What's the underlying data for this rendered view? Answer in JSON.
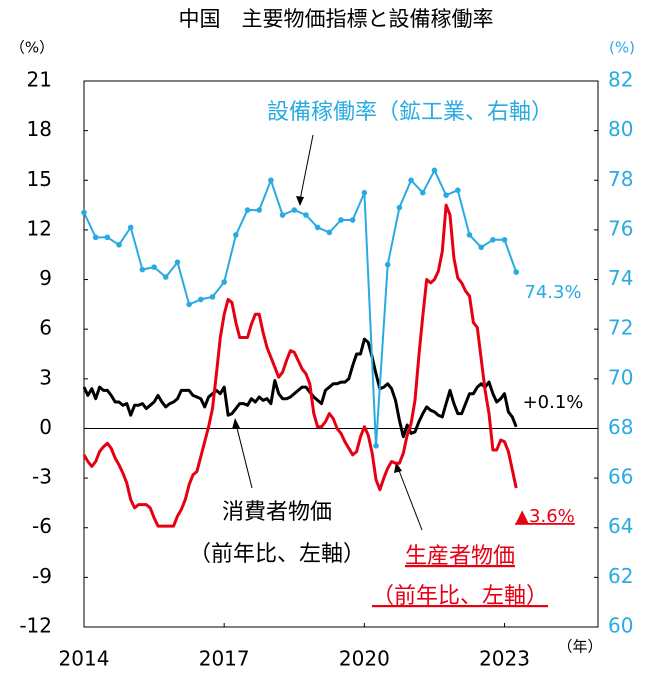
{
  "chart_data": {
    "type": "line",
    "title": "中国　主要物価指標と設備稼働率",
    "y_unit": "（%）",
    "y2_unit": "(%)",
    "x_unit": "（年）",
    "xlim": [
      2014,
      2025
    ],
    "xticks": [
      2014,
      2017,
      2020,
      2023
    ],
    "ylim": [
      -12,
      21
    ],
    "yticks": [
      -12,
      -9,
      -6,
      -3,
      0,
      3,
      6,
      9,
      12,
      15,
      18,
      21
    ],
    "y2lim": [
      60,
      82
    ],
    "y2ticks": [
      60,
      62,
      64,
      66,
      68,
      70,
      72,
      74,
      76,
      78,
      80,
      82
    ],
    "zero_line": true,
    "series": [
      {
        "name": "消費者物価",
        "color": "#000000",
        "axis": "y",
        "markers": false,
        "x": [
          2014,
          2014.083,
          2014.167,
          2014.25,
          2014.333,
          2014.417,
          2014.5,
          2014.583,
          2014.667,
          2014.75,
          2014.833,
          2014.917,
          2015,
          2015.083,
          2015.167,
          2015.25,
          2015.333,
          2015.417,
          2015.5,
          2015.583,
          2015.667,
          2015.75,
          2015.833,
          2015.917,
          2016,
          2016.083,
          2016.167,
          2016.25,
          2016.333,
          2016.417,
          2016.5,
          2016.583,
          2016.667,
          2016.75,
          2016.833,
          2016.917,
          2017,
          2017.083,
          2017.167,
          2017.25,
          2017.333,
          2017.417,
          2017.5,
          2017.583,
          2017.667,
          2017.75,
          2017.833,
          2017.917,
          2018,
          2018.083,
          2018.167,
          2018.25,
          2018.333,
          2018.417,
          2018.5,
          2018.583,
          2018.667,
          2018.75,
          2018.833,
          2018.917,
          2019,
          2019.083,
          2019.167,
          2019.25,
          2019.333,
          2019.417,
          2019.5,
          2019.583,
          2019.667,
          2019.75,
          2019.833,
          2019.917,
          2020,
          2020.083,
          2020.167,
          2020.25,
          2020.333,
          2020.417,
          2020.5,
          2020.583,
          2020.667,
          2020.75,
          2020.833,
          2020.917,
          2021,
          2021.083,
          2021.167,
          2021.25,
          2021.333,
          2021.417,
          2021.5,
          2021.583,
          2021.667,
          2021.75,
          2021.833,
          2021.917,
          2022,
          2022.083,
          2022.167,
          2022.25,
          2022.333,
          2022.417,
          2022.5,
          2022.583,
          2022.667,
          2022.75,
          2022.833,
          2022.917,
          2023,
          2023.083,
          2023.167,
          2023.25
        ],
        "values": [
          2.5,
          2.0,
          2.4,
          1.8,
          2.5,
          2.3,
          2.3,
          2.0,
          1.6,
          1.6,
          1.4,
          1.5,
          0.8,
          1.4,
          1.4,
          1.5,
          1.2,
          1.4,
          1.6,
          2.0,
          1.6,
          1.3,
          1.5,
          1.6,
          1.8,
          2.3,
          2.3,
          2.3,
          2.0,
          1.9,
          1.8,
          1.3,
          1.9,
          2.1,
          2.3,
          2.1,
          2.5,
          0.8,
          0.9,
          1.2,
          1.5,
          1.5,
          1.4,
          1.8,
          1.6,
          1.9,
          1.7,
          1.8,
          1.5,
          2.9,
          2.1,
          1.8,
          1.8,
          1.9,
          2.1,
          2.3,
          2.5,
          2.5,
          2.2,
          1.9,
          1.7,
          1.5,
          2.3,
          2.5,
          2.7,
          2.7,
          2.8,
          2.8,
          3.0,
          3.8,
          4.5,
          4.5,
          5.4,
          5.2,
          4.3,
          3.3,
          2.4,
          2.5,
          2.7,
          2.4,
          1.7,
          0.5,
          -0.5,
          0.2,
          -0.3,
          -0.2,
          0.4,
          0.9,
          1.3,
          1.1,
          1.0,
          0.8,
          0.7,
          1.5,
          2.3,
          1.5,
          0.9,
          0.9,
          1.5,
          2.1,
          2.1,
          2.5,
          2.7,
          2.5,
          2.8,
          2.1,
          1.6,
          1.8,
          2.1,
          1.0,
          0.7,
          0.1
        ]
      },
      {
        "name": "生産者物価",
        "color": "#e60012",
        "axis": "y",
        "markers": false,
        "x": [
          2014,
          2014.083,
          2014.167,
          2014.25,
          2014.333,
          2014.417,
          2014.5,
          2014.583,
          2014.667,
          2014.75,
          2014.833,
          2014.917,
          2015,
          2015.083,
          2015.167,
          2015.25,
          2015.333,
          2015.417,
          2015.5,
          2015.583,
          2015.667,
          2015.75,
          2015.833,
          2015.917,
          2016,
          2016.083,
          2016.167,
          2016.25,
          2016.333,
          2016.417,
          2016.5,
          2016.583,
          2016.667,
          2016.75,
          2016.833,
          2016.917,
          2017,
          2017.083,
          2017.167,
          2017.25,
          2017.333,
          2017.417,
          2017.5,
          2017.583,
          2017.667,
          2017.75,
          2017.833,
          2017.917,
          2018,
          2018.083,
          2018.167,
          2018.25,
          2018.333,
          2018.417,
          2018.5,
          2018.583,
          2018.667,
          2018.75,
          2018.833,
          2018.917,
          2019,
          2019.083,
          2019.167,
          2019.25,
          2019.333,
          2019.417,
          2019.5,
          2019.583,
          2019.667,
          2019.75,
          2019.833,
          2019.917,
          2020,
          2020.083,
          2020.167,
          2020.25,
          2020.333,
          2020.417,
          2020.5,
          2020.583,
          2020.667,
          2020.75,
          2020.833,
          2020.917,
          2021,
          2021.083,
          2021.167,
          2021.25,
          2021.333,
          2021.417,
          2021.5,
          2021.583,
          2021.667,
          2021.75,
          2021.833,
          2021.917,
          2022,
          2022.083,
          2022.167,
          2022.25,
          2022.333,
          2022.417,
          2022.5,
          2022.583,
          2022.667,
          2022.75,
          2022.833,
          2022.917,
          2023,
          2023.083,
          2023.167,
          2023.25
        ],
        "values": [
          -1.6,
          -2.0,
          -2.3,
          -2.0,
          -1.4,
          -1.1,
          -0.9,
          -1.2,
          -1.8,
          -2.2,
          -2.7,
          -3.3,
          -4.3,
          -4.8,
          -4.6,
          -4.6,
          -4.6,
          -4.8,
          -5.4,
          -5.9,
          -5.9,
          -5.9,
          -5.9,
          -5.9,
          -5.3,
          -4.9,
          -4.3,
          -3.4,
          -2.8,
          -2.6,
          -1.7,
          -0.8,
          0.1,
          1.2,
          3.3,
          5.5,
          6.9,
          7.8,
          7.6,
          6.4,
          5.5,
          5.5,
          5.5,
          6.3,
          6.9,
          6.9,
          5.8,
          4.9,
          4.3,
          3.7,
          3.1,
          3.4,
          4.1,
          4.7,
          4.6,
          4.1,
          3.6,
          3.3,
          2.7,
          0.9,
          0.1,
          0.1,
          0.4,
          0.9,
          0.6,
          0.0,
          -0.3,
          -0.8,
          -1.2,
          -1.6,
          -1.4,
          -0.5,
          0.1,
          -0.4,
          -1.5,
          -3.1,
          -3.7,
          -3.0,
          -2.4,
          -2.0,
          -2.1,
          -2.1,
          -1.5,
          -0.4,
          0.3,
          1.7,
          4.4,
          6.8,
          9.0,
          8.8,
          9.0,
          9.5,
          10.7,
          13.5,
          12.9,
          10.3,
          9.1,
          8.8,
          8.3,
          8.0,
          6.4,
          6.1,
          4.2,
          2.3,
          0.9,
          -1.3,
          -1.3,
          -0.7,
          -0.8,
          -1.4,
          -2.5,
          -3.6
        ]
      },
      {
        "name": "設備稼働率",
        "color": "#29abe2",
        "axis": "y2",
        "markers": true,
        "x": [
          2014,
          2014.25,
          2014.5,
          2014.75,
          2015,
          2015.25,
          2015.5,
          2015.75,
          2016,
          2016.25,
          2016.5,
          2016.75,
          2017,
          2017.25,
          2017.5,
          2017.75,
          2018,
          2018.25,
          2018.5,
          2018.75,
          2019,
          2019.25,
          2019.5,
          2019.75,
          2020,
          2020.25,
          2020.5,
          2020.75,
          2021,
          2021.25,
          2021.5,
          2021.75,
          2022,
          2022.25,
          2022.5,
          2022.75,
          2023,
          2023.25
        ],
        "values": [
          76.7,
          75.7,
          75.7,
          75.4,
          76.1,
          74.4,
          74.5,
          74.1,
          74.7,
          73.0,
          73.2,
          73.3,
          73.9,
          75.8,
          76.8,
          76.8,
          78.0,
          76.6,
          76.8,
          76.6,
          76.1,
          75.9,
          76.4,
          76.4,
          77.5,
          67.3,
          74.6,
          76.9,
          78.0,
          77.5,
          78.4,
          77.4,
          77.6,
          75.8,
          75.3,
          75.6,
          75.6,
          74.3
        ]
      }
    ],
    "annotations": [
      {
        "text": "設備稼働率（鉱工業、右軸）",
        "color": "#29abe2"
      },
      {
        "text": "74.3%",
        "color": "#29abe2"
      },
      {
        "text": "+0.1%",
        "color": "#000000"
      },
      {
        "text": "▲3.6%",
        "color": "#e60012"
      },
      {
        "text": "消費者物価",
        "color": "#000000"
      },
      {
        "text": "（前年比、左軸）",
        "color": "#000000"
      },
      {
        "text": "生産者物価",
        "color": "#e60012"
      },
      {
        "text": "（前年比、左軸）",
        "color": "#e60012"
      }
    ]
  }
}
